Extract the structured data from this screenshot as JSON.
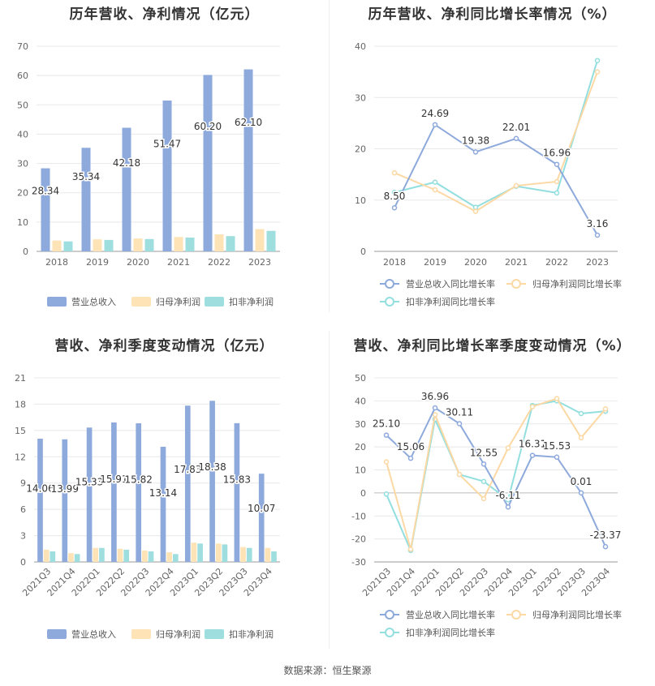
{
  "chart_data": [
    {
      "type": "bar",
      "title": "历年营收、净利情况（亿元）",
      "categories": [
        "2018",
        "2019",
        "2020",
        "2021",
        "2022",
        "2023"
      ],
      "ylim": [
        0,
        70
      ],
      "yticks": [
        0,
        10,
        20,
        30,
        40,
        50,
        60,
        70
      ],
      "series": [
        {
          "name": "营业总收入",
          "values": [
            28.34,
            35.34,
            42.18,
            51.47,
            60.2,
            62.1
          ],
          "color": "#8ea9db",
          "labels": [
            "28.34",
            "35.34",
            "42.18",
            "51.47",
            "60.20",
            "62.10"
          ]
        },
        {
          "name": "归母净利润",
          "values": [
            3.7,
            4.1,
            4.4,
            4.9,
            5.8,
            7.6
          ],
          "color": "#fde3b5"
        },
        {
          "name": "扣非净利润",
          "values": [
            3.4,
            3.9,
            4.2,
            4.7,
            5.2,
            7.0
          ],
          "color": "#9fdede"
        }
      ],
      "grid": true,
      "legend": "bottom"
    },
    {
      "type": "line",
      "title": "历年营收、净利同比增长率情况（%）",
      "categories": [
        "2018",
        "2019",
        "2020",
        "2021",
        "2022",
        "2023"
      ],
      "ylim": [
        0,
        40
      ],
      "yticks": [
        0,
        10,
        20,
        30,
        40
      ],
      "series": [
        {
          "name": "营业总收入同比增长率",
          "values": [
            8.5,
            24.69,
            19.38,
            22.01,
            16.96,
            3.16
          ],
          "color": "#8ea9db",
          "labels": [
            "8.50",
            "24.69",
            "19.38",
            "22.01",
            "16.96",
            "3.16"
          ]
        },
        {
          "name": "归母净利润同比增长率",
          "values": [
            15.3,
            12.0,
            7.8,
            12.8,
            13.6,
            35.0
          ],
          "color": "#fcd8a4"
        },
        {
          "name": "扣非净利润同比增长率",
          "values": [
            11.5,
            13.5,
            8.6,
            12.7,
            11.4,
            37.2
          ],
          "color": "#93dede"
        }
      ],
      "grid": true,
      "legend": "bottom"
    },
    {
      "type": "bar",
      "title": "营收、净利季度变动情况（亿元）",
      "categories": [
        "2021Q3",
        "2021Q4",
        "2022Q1",
        "2022Q2",
        "2022Q3",
        "2022Q4",
        "2023Q1",
        "2023Q2",
        "2023Q3",
        "2023Q4"
      ],
      "ylim": [
        0,
        21
      ],
      "yticks": [
        0,
        3,
        6,
        9,
        12,
        15,
        18,
        21
      ],
      "series": [
        {
          "name": "营业总收入",
          "values": [
            14.06,
            13.99,
            15.33,
            15.91,
            15.82,
            13.14,
            17.83,
            18.38,
            15.83,
            10.07
          ],
          "color": "#8ea9db",
          "labels": [
            "14.06",
            "13.99",
            "15.33",
            "15.91",
            "15.82",
            "13.14",
            "17.83",
            "18.38",
            "15.83",
            "10.07"
          ]
        },
        {
          "name": "归母净利润",
          "values": [
            1.4,
            1.0,
            1.6,
            1.5,
            1.3,
            1.1,
            2.2,
            2.1,
            1.7,
            1.6
          ],
          "color": "#fde3b5"
        },
        {
          "name": "扣非净利润",
          "values": [
            1.2,
            0.9,
            1.6,
            1.4,
            1.2,
            0.9,
            2.1,
            2.0,
            1.6,
            1.2
          ],
          "color": "#9fdede"
        }
      ],
      "grid": true,
      "legend": "bottom"
    },
    {
      "type": "line",
      "title": "营收、净利同比增长率季度变动情况（%）",
      "categories": [
        "2021Q3",
        "2021Q4",
        "2022Q1",
        "2022Q2",
        "2022Q3",
        "2022Q4",
        "2023Q1",
        "2023Q2",
        "2023Q3",
        "2023Q4"
      ],
      "ylim": [
        -30,
        50
      ],
      "yticks": [
        -30,
        -20,
        -10,
        0,
        10,
        20,
        30,
        40,
        50
      ],
      "series": [
        {
          "name": "营业总收入同比增长率",
          "values": [
            25.1,
            15.06,
            36.96,
            30.11,
            12.55,
            -6.11,
            16.31,
            15.53,
            0.01,
            -23.37
          ],
          "color": "#8ea9db",
          "labels": [
            "25.10",
            "15.06",
            "36.96",
            "30.11",
            "12.55",
            "-6.11",
            "16.31",
            "15.53",
            "0.01",
            "-23.37"
          ]
        },
        {
          "name": "归母净利润同比增长率",
          "values": [
            13.5,
            -24.5,
            34.0,
            8.0,
            -2.5,
            19.5,
            37.5,
            41.0,
            24.0,
            36.5
          ],
          "color": "#fcd8a4"
        },
        {
          "name": "扣非净利润同比增长率",
          "values": [
            -0.5,
            -25.0,
            32.0,
            8.0,
            5.0,
            -3.0,
            38.0,
            40.0,
            34.5,
            35.5
          ],
          "color": "#93dede"
        }
      ],
      "grid": true,
      "legend": "bottom"
    }
  ],
  "footer": {
    "source": "数据来源：恒生聚源"
  }
}
